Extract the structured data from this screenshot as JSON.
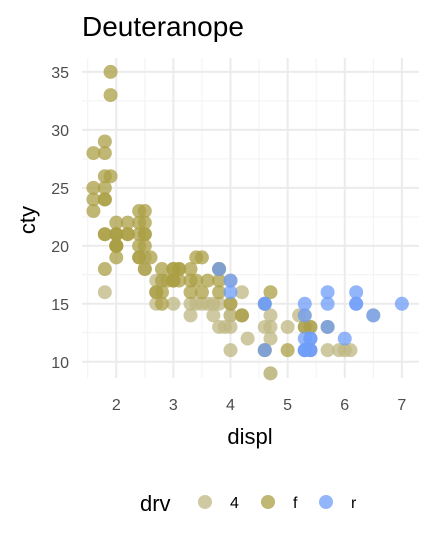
{
  "chart_data": {
    "type": "scatter",
    "title": "Deuteranope",
    "xlabel": "displ",
    "ylabel": "cty",
    "xlim": [
      1.4,
      7.3
    ],
    "ylim": [
      8.6,
      36.2
    ],
    "xticks": [
      2,
      3,
      4,
      5,
      6,
      7
    ],
    "yticks": [
      10,
      15,
      20,
      25,
      30,
      35
    ],
    "grid": true,
    "legend": {
      "title": "drv",
      "position": "bottom",
      "entries": [
        {
          "label": "4",
          "color": "#bfb783"
        },
        {
          "label": "f",
          "color": "#ab9f45"
        },
        {
          "label": "r",
          "color": "#6f9df8"
        }
      ]
    },
    "series": [
      {
        "name": "4",
        "color": "#bfb783",
        "points": [
          [
            1.8,
            16
          ],
          [
            2.5,
            18
          ],
          [
            2.5,
            19
          ],
          [
            2.7,
            15
          ],
          [
            2.7,
            16
          ],
          [
            2.7,
            17
          ],
          [
            2.7,
            16
          ],
          [
            3.0,
            15
          ],
          [
            3.3,
            14
          ],
          [
            3.3,
            15
          ],
          [
            3.4,
            15
          ],
          [
            3.5,
            15
          ],
          [
            3.7,
            14
          ],
          [
            3.7,
            15
          ],
          [
            3.8,
            15
          ],
          [
            3.8,
            13
          ],
          [
            4.0,
            14
          ],
          [
            4.0,
            14
          ],
          [
            4.0,
            13
          ],
          [
            4.0,
            11
          ],
          [
            4.0,
            15
          ],
          [
            4.2,
            14
          ],
          [
            4.2,
            14
          ],
          [
            4.2,
            16
          ],
          [
            4.3,
            12
          ],
          [
            4.6,
            13
          ],
          [
            4.6,
            11
          ],
          [
            4.7,
            13
          ],
          [
            4.7,
            12
          ],
          [
            4.7,
            9
          ],
          [
            4.7,
            14
          ],
          [
            5.0,
            13
          ],
          [
            5.2,
            14
          ],
          [
            5.3,
            13
          ],
          [
            5.4,
            13
          ],
          [
            5.4,
            11
          ],
          [
            5.7,
            11
          ],
          [
            5.9,
            11
          ],
          [
            6.0,
            11
          ],
          [
            6.1,
            11
          ],
          [
            6.5,
            14
          ],
          [
            4.7,
            9
          ],
          [
            5.3,
            14
          ],
          [
            4.0,
            17
          ],
          [
            3.9,
            13
          ],
          [
            3.0,
            17
          ],
          [
            3.6,
            15
          ]
        ]
      },
      {
        "name": "f",
        "color": "#ab9f45",
        "points": [
          [
            1.8,
            18
          ],
          [
            1.8,
            21
          ],
          [
            2.0,
            20
          ],
          [
            2.0,
            21
          ],
          [
            2.8,
            16
          ],
          [
            2.8,
            18
          ],
          [
            3.1,
            18
          ],
          [
            1.9,
            35
          ],
          [
            1.9,
            33
          ],
          [
            1.8,
            28
          ],
          [
            1.8,
            29
          ],
          [
            2.0,
            22
          ],
          [
            2.0,
            19
          ],
          [
            2.5,
            20
          ],
          [
            2.5,
            21
          ],
          [
            2.4,
            19
          ],
          [
            2.4,
            22
          ],
          [
            3.0,
            17
          ],
          [
            3.0,
            18
          ],
          [
            3.3,
            18
          ],
          [
            3.8,
            16
          ],
          [
            3.8,
            18
          ],
          [
            3.3,
            17
          ],
          [
            3.5,
            19
          ],
          [
            3.1,
            18
          ],
          [
            3.4,
            19
          ],
          [
            2.4,
            23
          ],
          [
            2.5,
            21
          ],
          [
            1.6,
            28
          ],
          [
            1.6,
            24
          ],
          [
            1.6,
            25
          ],
          [
            1.6,
            23
          ],
          [
            1.8,
            26
          ],
          [
            1.8,
            25
          ],
          [
            1.8,
            24
          ],
          [
            2.0,
            21
          ],
          [
            2.0,
            20
          ],
          [
            2.2,
            21
          ],
          [
            2.4,
            20
          ],
          [
            2.4,
            19
          ],
          [
            2.8,
            17
          ],
          [
            2.9,
            17
          ],
          [
            2.2,
            21
          ],
          [
            2.5,
            18
          ],
          [
            2.7,
            16
          ],
          [
            2.8,
            15
          ],
          [
            3.3,
            16
          ],
          [
            3.5,
            16
          ],
          [
            3.0,
            17
          ],
          [
            3.8,
            17
          ],
          [
            1.8,
            24
          ],
          [
            2.0,
            21
          ],
          [
            2.5,
            23
          ],
          [
            2.0,
            20
          ],
          [
            3.0,
            18
          ],
          [
            4.6,
            11
          ],
          [
            5.7,
            13
          ],
          [
            5.0,
            11
          ],
          [
            4.7,
            16
          ],
          [
            2.4,
            21
          ],
          [
            3.8,
            18
          ],
          [
            3.1,
            17
          ],
          [
            2.0,
            20
          ],
          [
            5.4,
            13
          ],
          [
            1.8,
            21
          ],
          [
            4.0,
            15
          ],
          [
            3.6,
            17
          ],
          [
            2.2,
            22
          ],
          [
            2.6,
            19
          ],
          [
            3.4,
            17
          ],
          [
            4.2,
            14
          ],
          [
            4.6,
            15
          ],
          [
            5.3,
            13
          ],
          [
            1.9,
            26
          ],
          [
            2.5,
            22
          ]
        ]
      },
      {
        "name": "r",
        "color": "#6f9df8",
        "points": [
          [
            5.7,
            16
          ],
          [
            5.7,
            15
          ],
          [
            6.2,
            16
          ],
          [
            6.2,
            15
          ],
          [
            7.0,
            15
          ],
          [
            5.3,
            14
          ],
          [
            5.3,
            11
          ],
          [
            5.7,
            13
          ],
          [
            6.5,
            14
          ],
          [
            4.6,
            15
          ],
          [
            5.4,
            11
          ],
          [
            5.4,
            12
          ],
          [
            4.0,
            17
          ],
          [
            4.6,
            15
          ],
          [
            5.4,
            11
          ],
          [
            5.3,
            11
          ],
          [
            5.3,
            12
          ],
          [
            5.3,
            15
          ],
          [
            3.8,
            18
          ],
          [
            4.6,
            11
          ],
          [
            6.0,
            12
          ],
          [
            5.4,
            12
          ],
          [
            5.3,
            11
          ],
          [
            6.2,
            15
          ],
          [
            4.0,
            16
          ]
        ]
      }
    ]
  }
}
